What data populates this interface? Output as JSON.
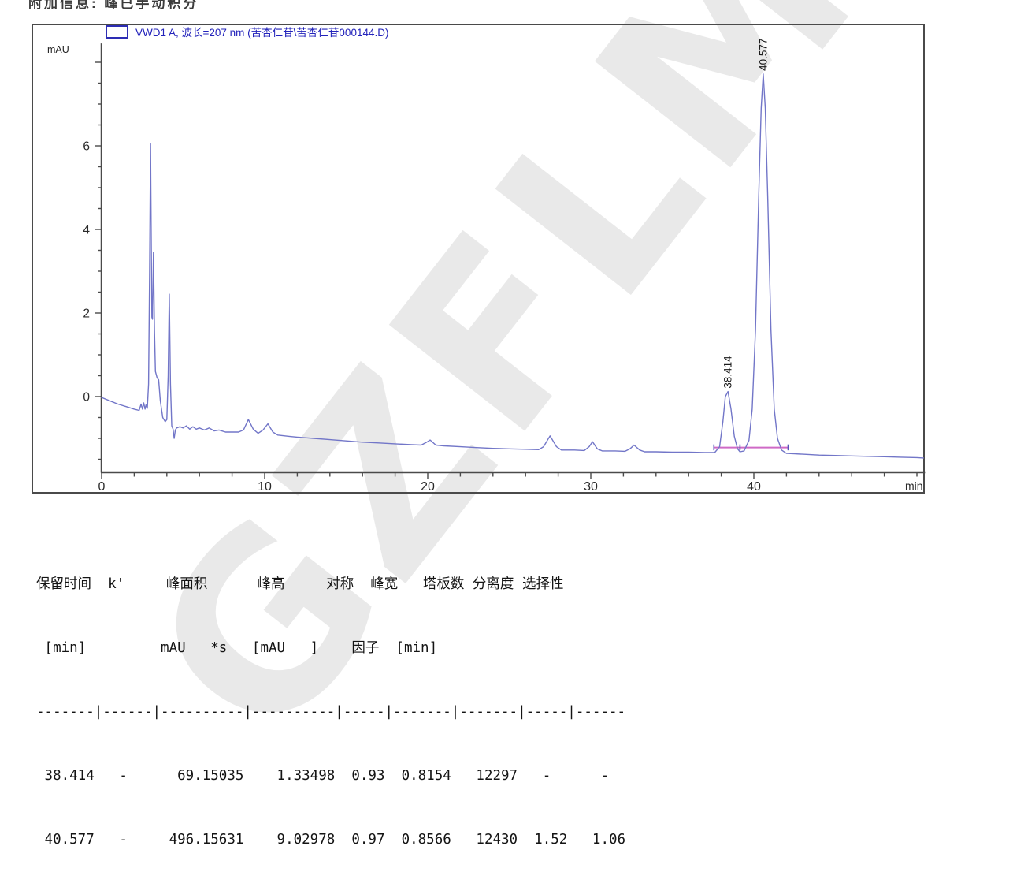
{
  "header": {
    "info_text": "附加信息: 峰已手动积分"
  },
  "watermark": {
    "text": "GZFLM"
  },
  "chart": {
    "legend": "VWD1 A, 波长=207 nm (苦杏仁苷\\苦杏仁苷000144.D)",
    "y_unit": "mAU",
    "x_unit": "min"
  },
  "colors": {
    "trace": "#7276c8",
    "integration_baseline": "#cf6ac6",
    "baseline_tick": "#5555bb",
    "axis": "#4a4a4a",
    "tick_label": "#2a2a2a",
    "peak_label": "#1a1a1a",
    "legend_blue": "#2323bb"
  },
  "chart_data": {
    "type": "line",
    "series_label": "VWD1 A, 波长=207 nm (苦杏仁苷\\苦杏仁苷000144.D)",
    "xlabel": "min",
    "ylabel": "mAU",
    "x_ticks": [
      0,
      10,
      20,
      30,
      40
    ],
    "x_minor_step": 2,
    "x_range": [
      0,
      50.5
    ],
    "y_ticks": [
      0,
      2,
      4,
      6
    ],
    "y_minor_step": 0.5,
    "y_range": [
      -1.81,
      8.45
    ],
    "grid": false,
    "legend_position": "top",
    "peaks": [
      {
        "rt": 38.414,
        "apex_mau": 0.12,
        "label": "38.414"
      },
      {
        "rt": 40.577,
        "apex_mau": 7.72,
        "label": "40.577"
      }
    ],
    "integration_baseline": {
      "from": 37.55,
      "to": 42.1,
      "value": -1.22,
      "tick_rts": [
        37.55,
        39.15,
        42.1
      ]
    },
    "trace": [
      [
        0,
        -0.02
      ],
      [
        0.5,
        -0.1
      ],
      [
        1,
        -0.18
      ],
      [
        1.5,
        -0.24
      ],
      [
        2,
        -0.3
      ],
      [
        2.3,
        -0.33
      ],
      [
        2.42,
        -0.18
      ],
      [
        2.5,
        -0.3
      ],
      [
        2.58,
        -0.15
      ],
      [
        2.66,
        -0.3
      ],
      [
        2.72,
        -0.2
      ],
      [
        2.8,
        -0.28
      ],
      [
        2.88,
        0.3
      ],
      [
        2.94,
        3.0
      ],
      [
        3.0,
        6.05
      ],
      [
        3.05,
        3.5
      ],
      [
        3.08,
        1.9
      ],
      [
        3.12,
        1.85
      ],
      [
        3.18,
        3.45
      ],
      [
        3.24,
        1.6
      ],
      [
        3.3,
        0.6
      ],
      [
        3.4,
        0.45
      ],
      [
        3.5,
        0.4
      ],
      [
        3.6,
        -0.1
      ],
      [
        3.75,
        -0.5
      ],
      [
        3.9,
        -0.6
      ],
      [
        4.0,
        -0.55
      ],
      [
        4.08,
        0.5
      ],
      [
        4.15,
        2.45
      ],
      [
        4.22,
        0.3
      ],
      [
        4.3,
        -0.7
      ],
      [
        4.38,
        -0.78
      ],
      [
        4.45,
        -1.0
      ],
      [
        4.52,
        -0.8
      ],
      [
        4.6,
        -0.75
      ],
      [
        4.8,
        -0.72
      ],
      [
        5.0,
        -0.75
      ],
      [
        5.2,
        -0.7
      ],
      [
        5.4,
        -0.78
      ],
      [
        5.6,
        -0.72
      ],
      [
        5.8,
        -0.78
      ],
      [
        6.0,
        -0.75
      ],
      [
        6.3,
        -0.8
      ],
      [
        6.6,
        -0.75
      ],
      [
        6.9,
        -0.82
      ],
      [
        7.2,
        -0.8
      ],
      [
        7.6,
        -0.85
      ],
      [
        8.0,
        -0.85
      ],
      [
        8.4,
        -0.85
      ],
      [
        8.7,
        -0.8
      ],
      [
        9.0,
        -0.55
      ],
      [
        9.3,
        -0.78
      ],
      [
        9.6,
        -0.88
      ],
      [
        9.9,
        -0.8
      ],
      [
        10.2,
        -0.65
      ],
      [
        10.5,
        -0.85
      ],
      [
        10.8,
        -0.92
      ],
      [
        11.5,
        -0.95
      ],
      [
        12,
        -0.97
      ],
      [
        13,
        -1.0
      ],
      [
        14,
        -1.03
      ],
      [
        15,
        -1.06
      ],
      [
        16,
        -1.09
      ],
      [
        17,
        -1.11
      ],
      [
        18,
        -1.13
      ],
      [
        19,
        -1.15
      ],
      [
        19.6,
        -1.16
      ],
      [
        19.9,
        -1.1
      ],
      [
        20.15,
        -1.04
      ],
      [
        20.5,
        -1.16
      ],
      [
        21,
        -1.18
      ],
      [
        22,
        -1.2
      ],
      [
        23,
        -1.22
      ],
      [
        24,
        -1.24
      ],
      [
        25,
        -1.25
      ],
      [
        26,
        -1.26
      ],
      [
        26.8,
        -1.27
      ],
      [
        27.1,
        -1.2
      ],
      [
        27.5,
        -0.94
      ],
      [
        27.9,
        -1.2
      ],
      [
        28.2,
        -1.28
      ],
      [
        29,
        -1.28
      ],
      [
        29.6,
        -1.29
      ],
      [
        29.9,
        -1.2
      ],
      [
        30.1,
        -1.08
      ],
      [
        30.4,
        -1.25
      ],
      [
        30.7,
        -1.3
      ],
      [
        31.5,
        -1.3
      ],
      [
        32.1,
        -1.31
      ],
      [
        32.4,
        -1.25
      ],
      [
        32.65,
        -1.16
      ],
      [
        33.0,
        -1.28
      ],
      [
        33.3,
        -1.32
      ],
      [
        34,
        -1.32
      ],
      [
        35,
        -1.33
      ],
      [
        36,
        -1.33
      ],
      [
        37,
        -1.34
      ],
      [
        37.6,
        -1.34
      ],
      [
        37.9,
        -1.2
      ],
      [
        38.1,
        -0.6
      ],
      [
        38.25,
        0.0
      ],
      [
        38.414,
        0.12
      ],
      [
        38.6,
        -0.3
      ],
      [
        38.8,
        -0.95
      ],
      [
        39.0,
        -1.25
      ],
      [
        39.15,
        -1.32
      ],
      [
        39.4,
        -1.3
      ],
      [
        39.7,
        -1.05
      ],
      [
        39.9,
        -0.3
      ],
      [
        40.1,
        1.6
      ],
      [
        40.3,
        4.8
      ],
      [
        40.45,
        6.9
      ],
      [
        40.577,
        7.72
      ],
      [
        40.7,
        6.9
      ],
      [
        40.85,
        4.8
      ],
      [
        41.05,
        1.6
      ],
      [
        41.25,
        -0.3
      ],
      [
        41.45,
        -1.0
      ],
      [
        41.7,
        -1.28
      ],
      [
        42.0,
        -1.36
      ],
      [
        42.5,
        -1.37
      ],
      [
        43,
        -1.38
      ],
      [
        44,
        -1.4
      ],
      [
        45,
        -1.41
      ],
      [
        46,
        -1.42
      ],
      [
        47,
        -1.43
      ],
      [
        48,
        -1.44
      ],
      [
        49,
        -1.45
      ],
      [
        50,
        -1.46
      ],
      [
        50.4,
        -1.47
      ]
    ]
  },
  "report_table": {
    "columns": [
      "保留时间 [min]",
      "k'",
      "峰面积 mAU*s",
      "峰高 [mAU]",
      "对称因子",
      "峰宽 [min]",
      "塔板数",
      "分离度",
      "选择性"
    ],
    "rows": [
      [
        "38.414",
        "-",
        "69.15035",
        "1.33498",
        "0.93",
        "0.8154",
        "12297",
        "-",
        "-"
      ],
      [
        "40.577",
        "-",
        "496.15631",
        "9.02978",
        "0.97",
        "0.8566",
        "12430",
        "1.52",
        "1.06"
      ]
    ],
    "lines": [
      "保留时间  k'     峰面积      峰高     对称  峰宽   塔板数 分离度 选择性",
      " [min]         mAU   *s   [mAU   ]    因子  [min]",
      "-------|------|----------|----------|-----|-------|-------|-----|------",
      " 38.414   -      69.15035    1.33498  0.93  0.8154   12297   -      -",
      " 40.577   -     496.15631    9.02978  0.97  0.8566   12430  1.52   1.06"
    ]
  }
}
